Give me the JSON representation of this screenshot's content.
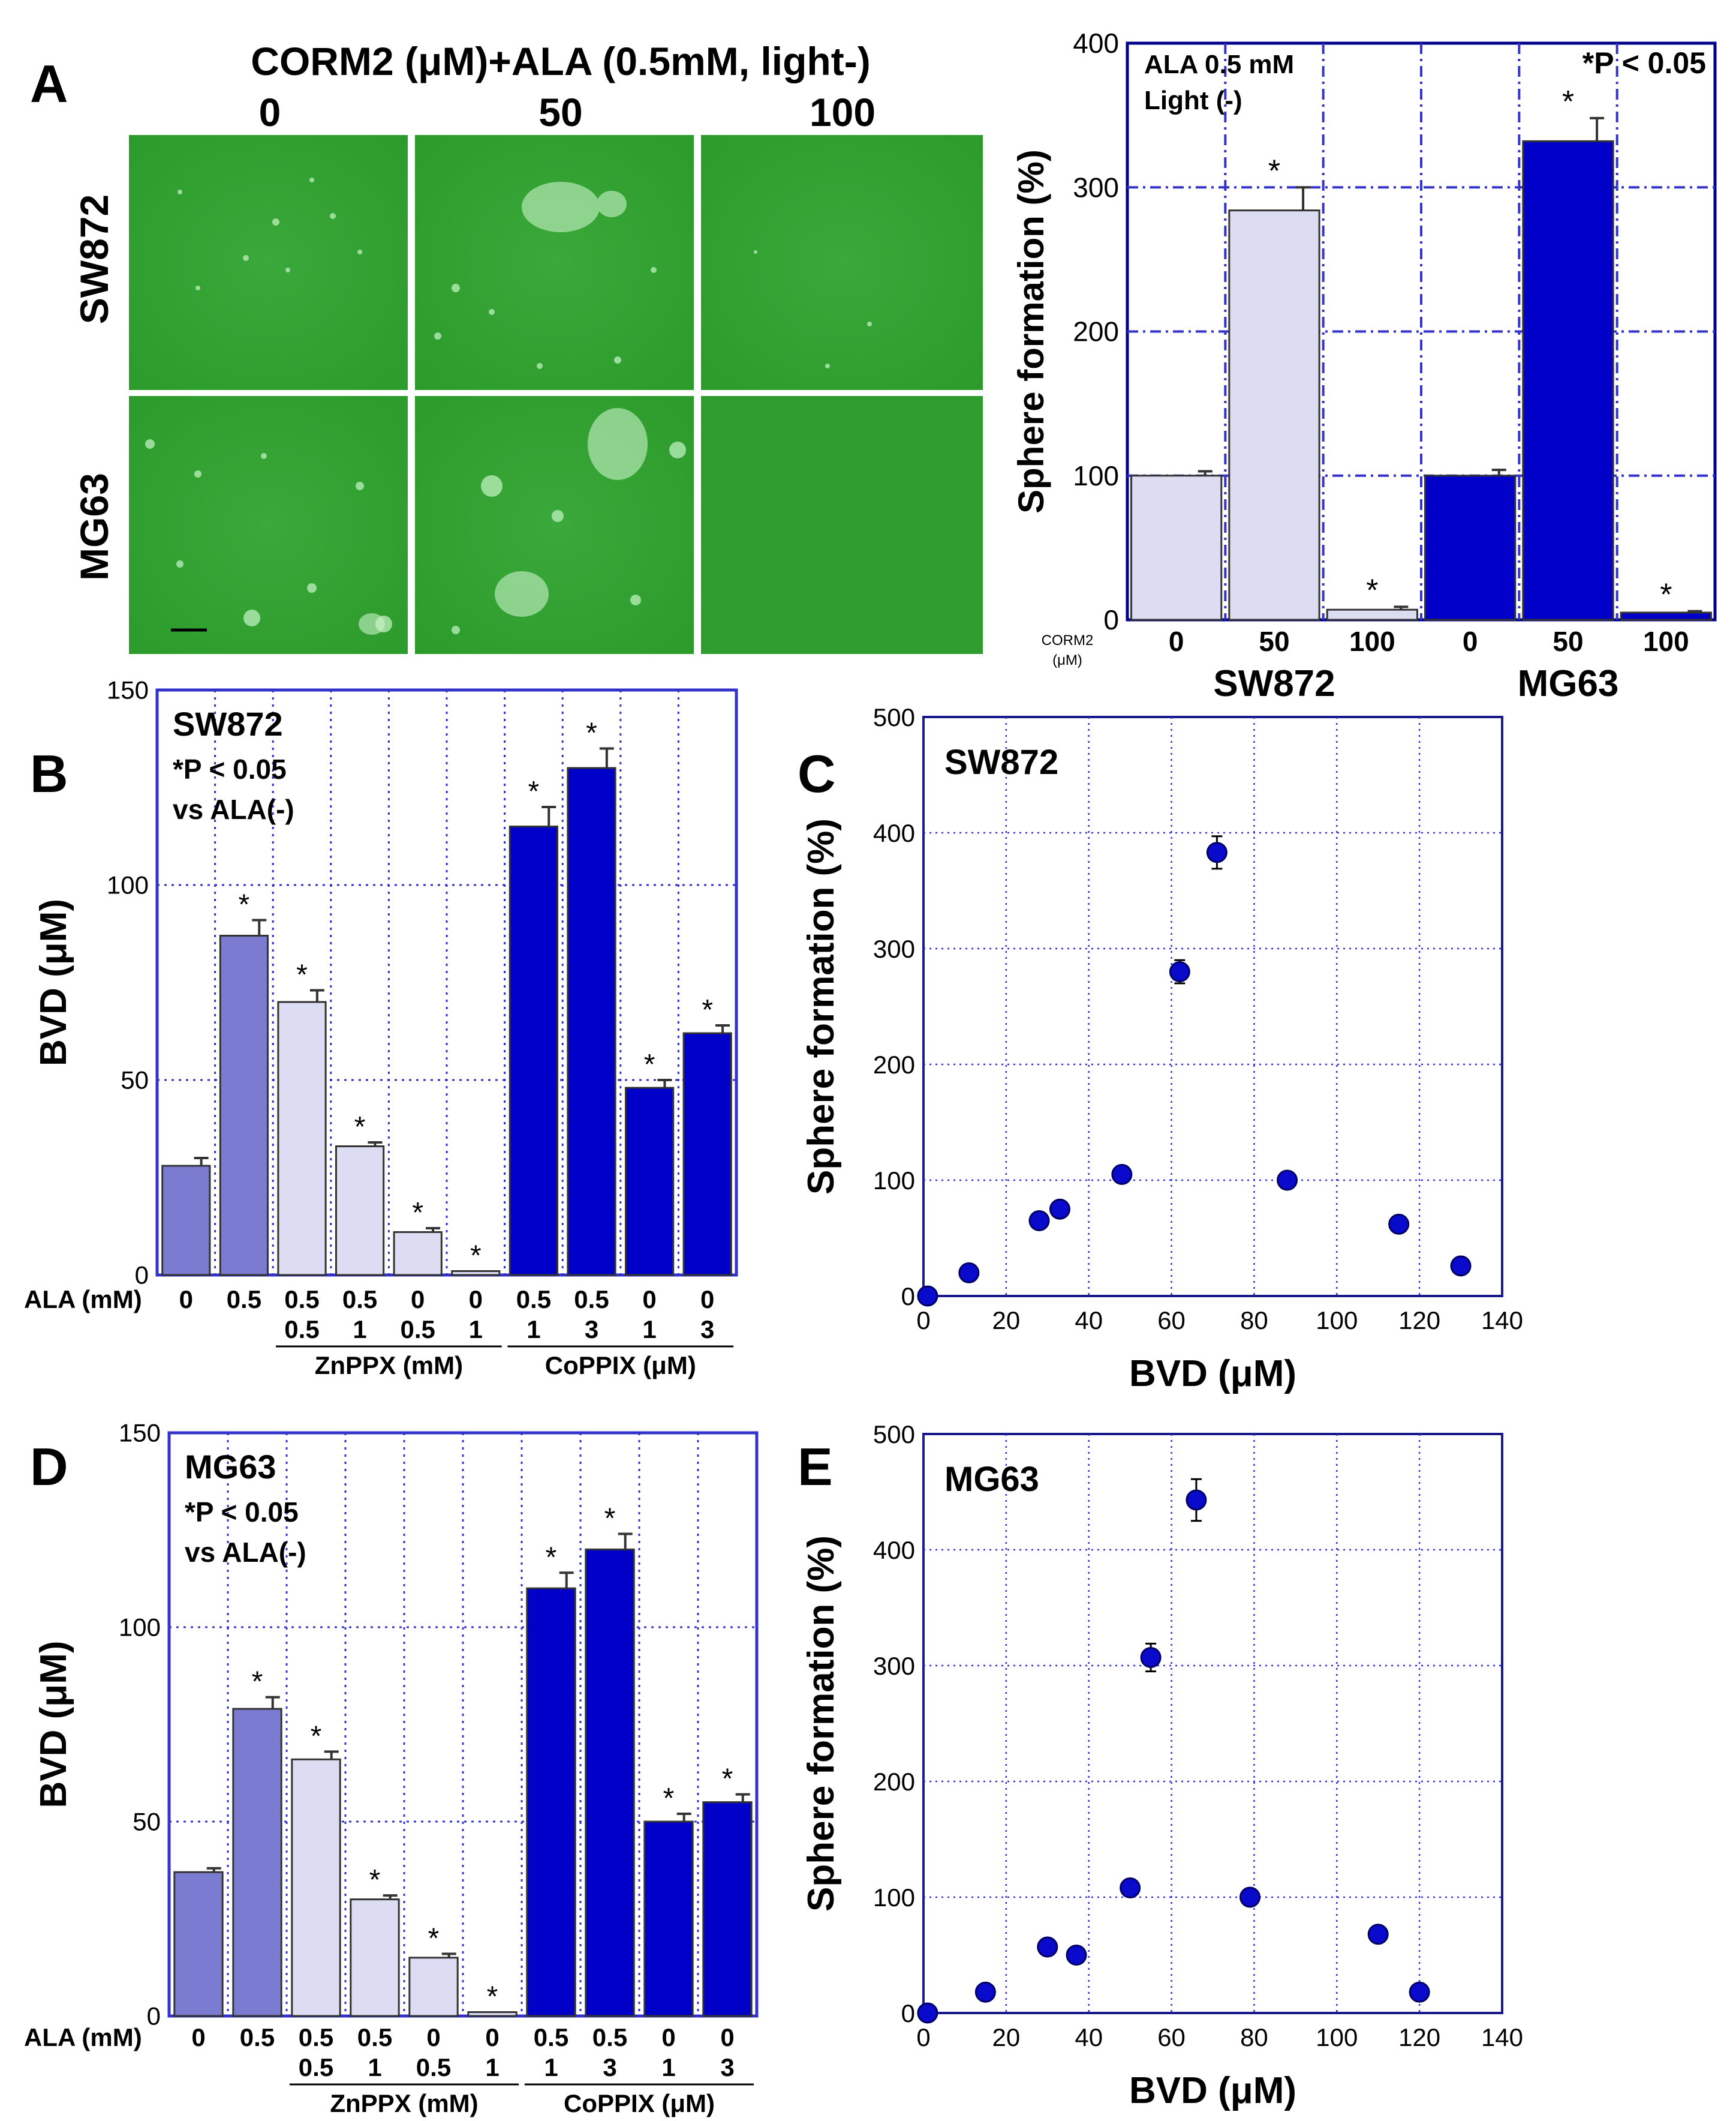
{
  "panels": {
    "A": {
      "letter": "A",
      "header": "CORM2 (μM)+ALA (0.5mM, light-)",
      "columns": [
        "0",
        "50",
        "100"
      ],
      "rows": [
        "SW872",
        "MG63"
      ]
    },
    "B": {
      "letter": "B"
    },
    "C": {
      "letter": "C"
    },
    "D": {
      "letter": "D"
    },
    "E": {
      "letter": "E"
    }
  },
  "chart_data": [
    {
      "id": "A-bar",
      "type": "bar",
      "ylabel": "Sphere formation (%)",
      "ylim": [
        0,
        400
      ],
      "yticks": [
        0,
        100,
        200,
        300,
        400
      ],
      "grid": true,
      "annotations": [
        "ALA  0.5 mM",
        "Light (-)",
        "*P < 0.05"
      ],
      "x_prefix": [
        "CORM2",
        "(μM)"
      ],
      "groups": [
        "SW872",
        "MG63"
      ],
      "categories": [
        "0",
        "50",
        "100",
        "0",
        "50",
        "100"
      ],
      "values": [
        100,
        284,
        7,
        100,
        332,
        5
      ],
      "errors": [
        3,
        16,
        2,
        4,
        16,
        1
      ],
      "significant": [
        false,
        true,
        true,
        false,
        true,
        true
      ],
      "colors": [
        "#dcdcf2",
        "#dcdcf2",
        "#dcdcf2",
        "#0000c8",
        "#0000c8",
        "#0000c8"
      ]
    },
    {
      "id": "B-bar",
      "type": "bar",
      "ylabel": "BVD (μM)",
      "ylim": [
        0,
        150
      ],
      "yticks": [
        0,
        50,
        100,
        150
      ],
      "grid": true,
      "annotations": [
        "SW872",
        "*P < 0.05",
        "vs ALA(-)"
      ],
      "row_label": "ALA  (mM)",
      "ala": [
        "0",
        "0.5",
        "0.5",
        "0.5",
        "0",
        "0",
        "0.5",
        "0.5",
        "0",
        "0"
      ],
      "second_row": [
        "",
        "",
        "0.5",
        "1",
        "0.5",
        "1",
        "1",
        "3",
        "1",
        "3"
      ],
      "group_labels": [
        {
          "label": "ZnPPX (mM)",
          "from": 2,
          "to": 5
        },
        {
          "label": "CoPPIX (μM)",
          "from": 6,
          "to": 9
        }
      ],
      "values": [
        28,
        87,
        70,
        33,
        11,
        1,
        115,
        130,
        48,
        62
      ],
      "errors": [
        2,
        4,
        3,
        1,
        1,
        0,
        5,
        5,
        2,
        2
      ],
      "significant": [
        false,
        true,
        true,
        true,
        true,
        true,
        true,
        true,
        true,
        true
      ],
      "colors": [
        "#7b7bd2",
        "#7b7bd2",
        "#dcdcf2",
        "#dcdcf2",
        "#dcdcf2",
        "#dcdcf2",
        "#0000c8",
        "#0000c8",
        "#0000c8",
        "#0000c8"
      ]
    },
    {
      "id": "C-scatter",
      "type": "scatter",
      "title": "SW872",
      "xlabel": "BVD (μM)",
      "ylabel": "Sphere formation (%)",
      "xlim": [
        0,
        140
      ],
      "ylim": [
        0,
        500
      ],
      "xticks": [
        0,
        20,
        40,
        60,
        80,
        100,
        120,
        140
      ],
      "yticks": [
        0,
        100,
        200,
        300,
        400,
        500
      ],
      "grid": true,
      "points": [
        {
          "x": 1,
          "y": 0
        },
        {
          "x": 11,
          "y": 20
        },
        {
          "x": 28,
          "y": 65
        },
        {
          "x": 33,
          "y": 75
        },
        {
          "x": 48,
          "y": 105
        },
        {
          "x": 62,
          "y": 280
        },
        {
          "x": 71,
          "y": 383
        },
        {
          "x": 88,
          "y": 100
        },
        {
          "x": 115,
          "y": 62
        },
        {
          "x": 130,
          "y": 26
        }
      ],
      "errors": [
        0,
        0,
        0,
        0,
        0,
        10,
        14,
        0,
        0,
        0
      ]
    },
    {
      "id": "D-bar",
      "type": "bar",
      "ylabel": "BVD (μM)",
      "ylim": [
        0,
        150
      ],
      "yticks": [
        0,
        50,
        100,
        150
      ],
      "grid": true,
      "annotations": [
        "MG63",
        "*P < 0.05",
        "vs ALA(-)"
      ],
      "row_label": "ALA  (mM)",
      "ala": [
        "0",
        "0.5",
        "0.5",
        "0.5",
        "0",
        "0",
        "0.5",
        "0.5",
        "0",
        "0"
      ],
      "second_row": [
        "",
        "",
        "0.5",
        "1",
        "0.5",
        "1",
        "1",
        "3",
        "1",
        "3"
      ],
      "group_labels": [
        {
          "label": "ZnPPX (mM)",
          "from": 2,
          "to": 5
        },
        {
          "label": "CoPPIX (μM)",
          "from": 6,
          "to": 9
        }
      ],
      "values": [
        37,
        79,
        66,
        30,
        15,
        1,
        110,
        120,
        50,
        55
      ],
      "errors": [
        1,
        3,
        2,
        1,
        1,
        0,
        4,
        4,
        2,
        2
      ],
      "significant": [
        false,
        true,
        true,
        true,
        true,
        true,
        true,
        true,
        true,
        true
      ],
      "colors": [
        "#7b7bd2",
        "#7b7bd2",
        "#dcdcf2",
        "#dcdcf2",
        "#dcdcf2",
        "#dcdcf2",
        "#0000c8",
        "#0000c8",
        "#0000c8",
        "#0000c8"
      ]
    },
    {
      "id": "E-scatter",
      "type": "scatter",
      "title": "MG63",
      "xlabel": "BVD (μM)",
      "ylabel": "Sphere formation (%)",
      "xlim": [
        0,
        140
      ],
      "ylim": [
        0,
        500
      ],
      "xticks": [
        0,
        20,
        40,
        60,
        80,
        100,
        120,
        140
      ],
      "yticks": [
        0,
        100,
        200,
        300,
        400,
        500
      ],
      "grid": true,
      "points": [
        {
          "x": 1,
          "y": 0
        },
        {
          "x": 15,
          "y": 18
        },
        {
          "x": 30,
          "y": 57
        },
        {
          "x": 37,
          "y": 50
        },
        {
          "x": 50,
          "y": 108
        },
        {
          "x": 55,
          "y": 307
        },
        {
          "x": 66,
          "y": 443
        },
        {
          "x": 79,
          "y": 100
        },
        {
          "x": 110,
          "y": 68
        },
        {
          "x": 120,
          "y": 18
        }
      ],
      "errors": [
        0,
        0,
        0,
        0,
        0,
        12,
        18,
        0,
        0,
        0
      ]
    }
  ]
}
